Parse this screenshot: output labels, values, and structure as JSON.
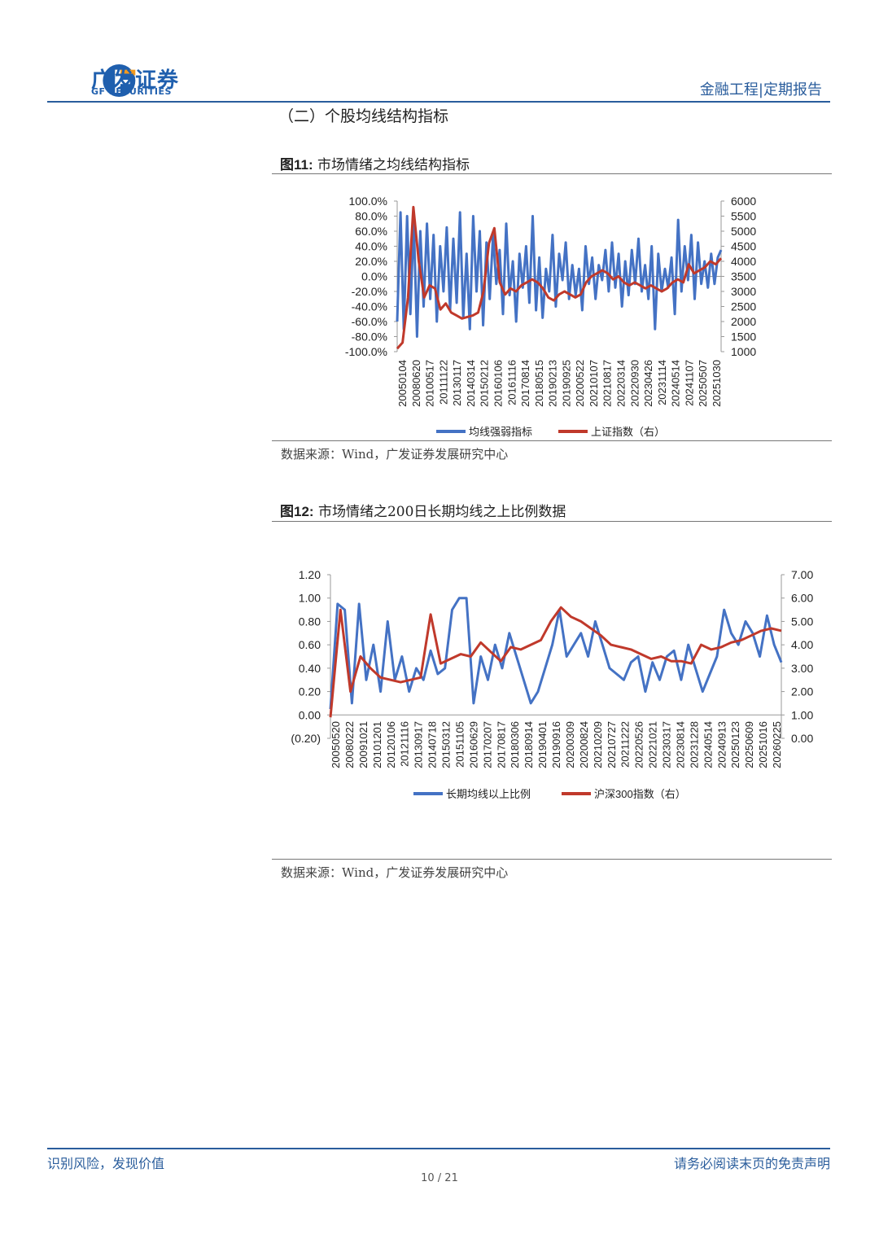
{
  "header": {
    "brand_cn": "广发证券",
    "brand_en": "GF SECURITIES",
    "report_type": "金融工程|定期报告",
    "colors": {
      "brand_blue": "#1f5fae",
      "brand_orange": "#f39a1e"
    }
  },
  "section_title": "（二）个股均线结构指标",
  "figures": [
    {
      "label": "图11:",
      "title": "市场情绪之均线结构指标",
      "source": "数据来源：Wind，广发证券发展研究中心"
    },
    {
      "label": "图12:",
      "title": "市场情绪之200日长期均线之上比例数据",
      "source": "数据来源：Wind，广发证券发展研究中心"
    }
  ],
  "chart_data": [
    {
      "type": "line",
      "title": "市场情绪之均线结构指标",
      "x_ticks": [
        "20050104",
        "20080620",
        "20100517",
        "20111122",
        "20130117",
        "20140314",
        "20150212",
        "20160106",
        "20161116",
        "20170814",
        "20180515",
        "20190213",
        "20190925",
        "20200522",
        "20210107",
        "20210817",
        "20220314",
        "20220930",
        "20230426",
        "20231114",
        "20240514",
        "20241107",
        "20250507",
        "20251030"
      ],
      "y_left": {
        "ticks": [
          "100.0%",
          "80.0%",
          "60.0%",
          "40.0%",
          "20.0%",
          "0.0%",
          "-20.0%",
          "-40.0%",
          "-60.0%",
          "-80.0%",
          "-100.0%"
        ],
        "range": [
          -100,
          100
        ]
      },
      "y_right": {
        "ticks": [
          "6000",
          "5500",
          "5000",
          "4500",
          "4000",
          "3500",
          "3000",
          "2500",
          "2000",
          "1500",
          "1000"
        ],
        "range": [
          1000,
          6000
        ]
      },
      "series": [
        {
          "name": "均线强弱指标",
          "axis": "left",
          "color": "#4472c4",
          "values": [
            -60,
            85,
            -70,
            80,
            -50,
            75,
            -80,
            60,
            -40,
            70,
            -30,
            55,
            -60,
            40,
            -20,
            65,
            -45,
            50,
            -35,
            85,
            -55,
            30,
            -70,
            80,
            -20,
            60,
            -65,
            45,
            -30,
            55,
            -10,
            35,
            -50,
            70,
            -25,
            20,
            -60,
            30,
            -15,
            40,
            -35,
            80,
            -45,
            25,
            -55,
            10,
            -20,
            55,
            -40,
            30,
            -5,
            45,
            -30,
            15,
            -25,
            10,
            -45,
            40,
            -10,
            25,
            -30,
            15,
            -5,
            35,
            -20,
            45,
            -15,
            30,
            -40,
            20,
            -25,
            35,
            -10,
            50,
            -20,
            15,
            -30,
            40,
            -70,
            30,
            -20,
            10,
            -15,
            25,
            -50,
            75,
            -20,
            40,
            -5,
            55,
            -30,
            45,
            -10,
            20,
            -15,
            30,
            -10,
            25,
            35
          ]
        },
        {
          "name": "上证指数（右）",
          "axis": "right",
          "color": "#c0392b",
          "values": [
            1100,
            1300,
            2800,
            5800,
            4000,
            2800,
            3200,
            3100,
            2400,
            2600,
            2300,
            2200,
            2100,
            2150,
            2200,
            2300,
            3000,
            4600,
            5100,
            3300,
            2900,
            3100,
            3000,
            3200,
            3300,
            3400,
            3300,
            3100,
            2800,
            2700,
            2900,
            3000,
            2900,
            2800,
            2900,
            3300,
            3500,
            3600,
            3700,
            3600,
            3400,
            3500,
            3300,
            3200,
            3300,
            3200,
            3100,
            3200,
            3100,
            3000,
            3100,
            3300,
            3400,
            3300,
            3900,
            3600,
            3700,
            3800,
            4000,
            3900,
            4100
          ]
        }
      ],
      "legend_position": "bottom"
    },
    {
      "type": "line",
      "title": "市场情绪之200日长期均线之上比例数据",
      "x_ticks": [
        "20050520",
        "20080222",
        "20091021",
        "20101201",
        "20120106",
        "20121116",
        "20130917",
        "20140718",
        "20150312",
        "20151105",
        "20160629",
        "20170207",
        "20170817",
        "20180306",
        "20180914",
        "20190401",
        "20190916",
        "20200309",
        "20200824",
        "20210209",
        "20210727",
        "20211222",
        "20220526",
        "20221021",
        "20230317",
        "20230814",
        "20231228",
        "20240514",
        "20240913",
        "20250123",
        "20250609",
        "20251016",
        "20260225"
      ],
      "y_left": {
        "ticks": [
          "1.20",
          "1.00",
          "0.80",
          "0.60",
          "0.40",
          "0.20",
          "0.00",
          "(0.20)"
        ],
        "range": [
          -0.2,
          1.2
        ]
      },
      "y_right": {
        "ticks": [
          "7.00",
          "6.00",
          "5.00",
          "4.00",
          "3.00",
          "2.00",
          "1.00",
          "0.00"
        ],
        "range": [
          0,
          7
        ]
      },
      "series": [
        {
          "name": "长期均线以上比例",
          "axis": "left",
          "color": "#4472c4",
          "values": [
            0.05,
            0.95,
            0.9,
            0.1,
            0.95,
            0.3,
            0.6,
            0.2,
            0.8,
            0.3,
            0.5,
            0.2,
            0.4,
            0.3,
            0.55,
            0.35,
            0.4,
            0.9,
            1.0,
            1.0,
            0.1,
            0.5,
            0.3,
            0.6,
            0.4,
            0.7,
            0.5,
            0.3,
            0.1,
            0.2,
            0.4,
            0.6,
            0.9,
            0.5,
            0.6,
            0.7,
            0.5,
            0.8,
            0.6,
            0.4,
            0.35,
            0.3,
            0.45,
            0.5,
            0.2,
            0.45,
            0.3,
            0.5,
            0.55,
            0.3,
            0.6,
            0.4,
            0.2,
            0.35,
            0.5,
            0.9,
            0.7,
            0.6,
            0.8,
            0.7,
            0.5,
            0.85,
            0.6,
            0.45
          ]
        },
        {
          "name": "沪深300指数（右）",
          "axis": "right",
          "color": "#c0392b",
          "values": [
            0.9,
            5.5,
            2.0,
            3.5,
            3.0,
            2.6,
            2.5,
            2.4,
            2.5,
            2.6,
            5.3,
            3.2,
            3.4,
            3.6,
            3.5,
            4.1,
            3.7,
            3.3,
            3.9,
            3.8,
            4.0,
            4.2,
            5.0,
            5.6,
            5.2,
            5.0,
            4.7,
            4.4,
            4.0,
            3.9,
            3.8,
            3.6,
            3.4,
            3.5,
            3.3,
            3.3,
            3.2,
            4.0,
            3.8,
            3.9,
            4.1,
            4.2,
            4.4,
            4.6,
            4.7,
            4.6
          ]
        }
      ],
      "legend_position": "bottom"
    }
  ],
  "footer": {
    "left": "识别风险，发现价值",
    "right": "请务必阅读末页的免责声明",
    "page": "10 / 21"
  }
}
